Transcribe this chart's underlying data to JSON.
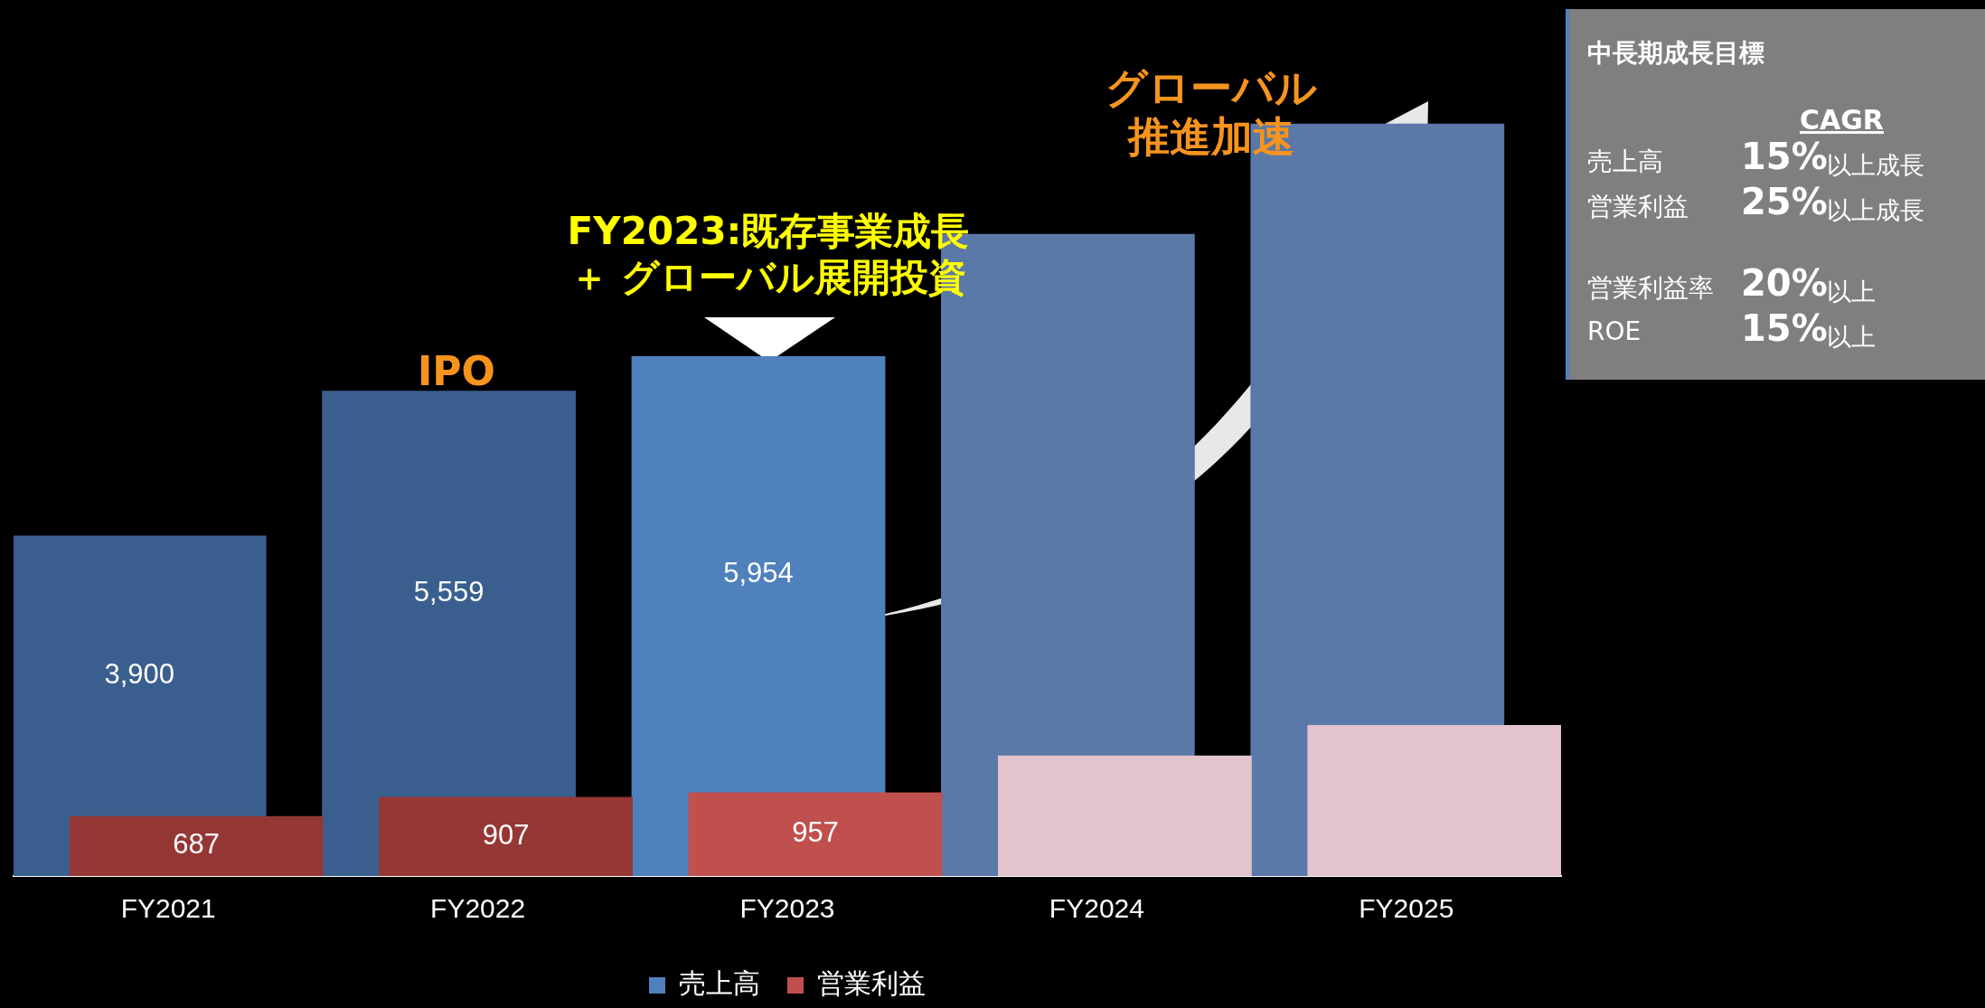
{
  "chart_data": {
    "type": "bar",
    "categories": [
      "FY2021",
      "FY2022",
      "FY2023",
      "FY2024",
      "FY2025"
    ],
    "series": [
      {
        "name": "売上高",
        "color": "#4f81bd",
        "colors": [
          "#3a5f8f",
          "#3a5f8f",
          "#4f81bd",
          "#5a78a8",
          "#5a78a8"
        ],
        "values": [
          3900,
          5559,
          5954,
          7355,
          8620
        ],
        "value_labels": [
          "3,900",
          "5,559",
          "5,954",
          null,
          null
        ]
      },
      {
        "name": "営業利益",
        "color": "#c0504d",
        "colors": [
          "#953735",
          "#953735",
          "#c0504d",
          "#e3c4cc",
          "#e3c4cc"
        ],
        "values": [
          687,
          907,
          957,
          1380,
          1730
        ],
        "value_labels": [
          "687",
          "907",
          "957",
          null,
          null
        ]
      }
    ],
    "tick_labels": "x",
    "legend": "bottom",
    "annotations": [
      "IPO",
      "FY2023:既存事業成長",
      "＋ グローバル展開投資",
      "グローバル",
      "推進加速",
      "中長期成長目標",
      "CAGR",
      "売上高",
      "15%",
      "以上成長",
      "営業利益",
      "25%",
      "以上成長",
      "営業利益率",
      "20%",
      "以上",
      "ROE",
      "15%",
      "以上"
    ]
  }
}
